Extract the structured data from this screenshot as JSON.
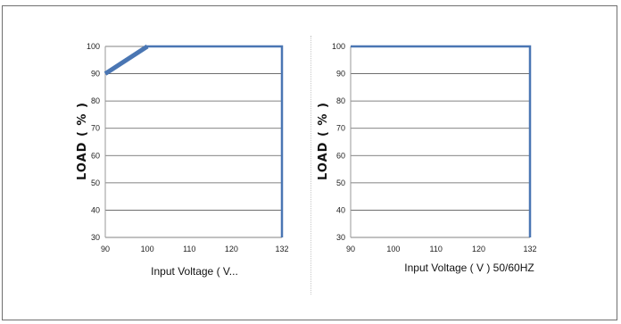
{
  "chart_data": [
    {
      "type": "line",
      "x": [
        90,
        100,
        132
      ],
      "series": [
        {
          "values": [
            90,
            100,
            100
          ]
        }
      ],
      "xlabel": "Input Voltage ( V...",
      "ylabel": "LOAD ( % )",
      "xticks": [
        "90",
        "100",
        "110",
        "120",
        "132"
      ],
      "yticks": [
        "30",
        "40",
        "50",
        "60",
        "70",
        "80",
        "90",
        "100"
      ],
      "xlim": [
        90,
        132
      ],
      "ylim": [
        30,
        100
      ],
      "drop_to_min_at_end": true,
      "grid": "horizontal",
      "color": "#4a76b3"
    },
    {
      "type": "line",
      "x": [
        90,
        132
      ],
      "series": [
        {
          "values": [
            100,
            100
          ]
        }
      ],
      "xlabel": "Input Voltage ( V ) 50/60HZ",
      "ylabel": "LOAD ( % )",
      "xticks": [
        "90",
        "100",
        "110",
        "120",
        "132"
      ],
      "yticks": [
        "30",
        "40",
        "50",
        "60",
        "70",
        "80",
        "90",
        "100"
      ],
      "xlim": [
        90,
        132
      ],
      "ylim": [
        30,
        100
      ],
      "drop_to_min_at_end": true,
      "grid": "horizontal",
      "color": "#4a76b3"
    }
  ]
}
